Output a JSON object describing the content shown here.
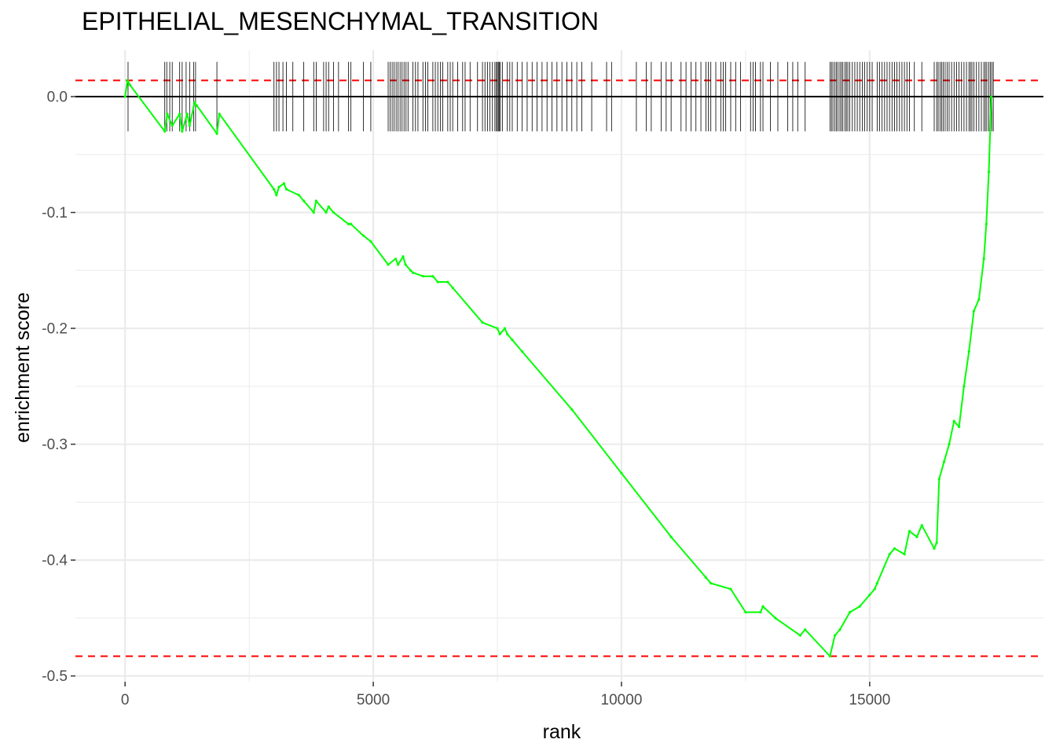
{
  "chart_data": {
    "type": "line",
    "title": "EPITHELIAL_MESENCHYMAL_TRANSITION",
    "xlabel": "rank",
    "ylabel": "enrichment score",
    "xlim": [
      -1000,
      18500
    ],
    "ylim": [
      -0.505,
      0.04
    ],
    "x_ticks": [
      0,
      5000,
      10000,
      15000
    ],
    "x_tick_labels": [
      "0",
      "5000",
      "10000",
      "15000"
    ],
    "y_ticks": [
      0.0,
      -0.1,
      -0.2,
      -0.3,
      -0.4,
      -0.5
    ],
    "y_tick_labels": [
      "0.0",
      "-0.1",
      "-0.2",
      "-0.3",
      "-0.4",
      "-0.5"
    ],
    "grid": true,
    "colors": {
      "curve": "#00ff00",
      "reference_lines": "#ff0000",
      "zero_line": "#000000",
      "gene_ticks": "#000000",
      "grid": "#ebebeb"
    },
    "reference_lines": {
      "upper": 0.014,
      "lower": -0.483,
      "zero": 0.0
    },
    "series": [
      {
        "x": [
          0,
          50,
          100,
          800,
          850,
          950,
          1100,
          1150,
          1250,
          1300,
          1400,
          1450,
          1850,
          1900,
          3000,
          3050,
          3100,
          3200,
          3250,
          3500,
          3600,
          3800,
          3850,
          4050,
          4100,
          4200,
          4500,
          4550,
          4800,
          4950,
          5300,
          5450,
          5500,
          5600,
          5650,
          5750,
          5800,
          6000,
          6200,
          6300,
          6500,
          6600,
          7200,
          7500,
          7550,
          7650,
          7700,
          7800,
          8000,
          9000,
          10000,
          11000,
          11700,
          11800,
          12200,
          12500,
          12800,
          12850,
          13100,
          13600,
          13700,
          14200,
          14300,
          14400,
          14600,
          14800,
          15000,
          15100,
          15150,
          15400,
          15500,
          15700,
          15800,
          15950,
          16050,
          16300,
          16350,
          16400,
          16500,
          16600,
          16700,
          16800,
          16900,
          17000,
          17100,
          17200,
          17300,
          17350,
          17400,
          17450
        ],
        "y": [
          0.0,
          0.014,
          0.01,
          -0.03,
          -0.015,
          -0.025,
          -0.015,
          -0.03,
          -0.015,
          -0.025,
          -0.005,
          -0.008,
          -0.032,
          -0.015,
          -0.08,
          -0.085,
          -0.078,
          -0.075,
          -0.08,
          -0.085,
          -0.09,
          -0.1,
          -0.09,
          -0.1,
          -0.095,
          -0.1,
          -0.11,
          -0.11,
          -0.12,
          -0.125,
          -0.145,
          -0.14,
          -0.145,
          -0.138,
          -0.145,
          -0.15,
          -0.152,
          -0.155,
          -0.155,
          -0.16,
          -0.16,
          -0.165,
          -0.195,
          -0.2,
          -0.205,
          -0.2,
          -0.205,
          -0.21,
          -0.22,
          -0.27,
          -0.325,
          -0.38,
          -0.415,
          -0.42,
          -0.425,
          -0.445,
          -0.445,
          -0.44,
          -0.45,
          -0.465,
          -0.46,
          -0.483,
          -0.465,
          -0.46,
          -0.445,
          -0.44,
          -0.43,
          -0.425,
          -0.42,
          -0.395,
          -0.39,
          -0.395,
          -0.375,
          -0.38,
          -0.37,
          -0.39,
          -0.385,
          -0.33,
          -0.315,
          -0.3,
          -0.28,
          -0.285,
          -0.25,
          -0.22,
          -0.185,
          -0.175,
          -0.14,
          -0.11,
          -0.065,
          0.0
        ]
      }
    ],
    "gene_ranks": [
      60,
      800,
      840,
      900,
      950,
      1100,
      1150,
      1230,
      1300,
      1380,
      1420,
      1850,
      3000,
      3050,
      3100,
      3180,
      3250,
      3380,
      3600,
      3800,
      3850,
      4000,
      4050,
      4100,
      4200,
      4300,
      4500,
      4550,
      4800,
      4950,
      5300,
      5340,
      5380,
      5420,
      5460,
      5500,
      5540,
      5580,
      5620,
      5660,
      5700,
      5800,
      5850,
      5900,
      6000,
      6050,
      6100,
      6200,
      6250,
      6300,
      6350,
      6400,
      6500,
      6550,
      6600,
      6700,
      6800,
      6850,
      6950,
      7100,
      7200,
      7250,
      7300,
      7350,
      7400,
      7450,
      7480,
      7500,
      7520,
      7540,
      7560,
      7600,
      7700,
      7750,
      7800,
      7900,
      8000,
      8100,
      8200,
      8300,
      8400,
      8500,
      8600,
      8700,
      8800,
      8900,
      9000,
      9100,
      9200,
      9400,
      9700,
      9800,
      10300,
      10500,
      10600,
      10800,
      10900,
      11000,
      11200,
      11300,
      11400,
      11500,
      11600,
      11700,
      11750,
      11800,
      11900,
      12000,
      12050,
      12100,
      12200,
      12300,
      12400,
      12600,
      12650,
      12700,
      12800,
      12850,
      13000,
      13150,
      13350,
      13450,
      13550,
      13700,
      14200,
      14230,
      14260,
      14300,
      14330,
      14360,
      14400,
      14430,
      14460,
      14500,
      14530,
      14560,
      14600,
      14650,
      14700,
      14750,
      14800,
      14850,
      14900,
      14950,
      15000,
      15050,
      15150,
      15200,
      15250,
      15300,
      15350,
      15400,
      15450,
      15500,
      15550,
      15600,
      15650,
      15700,
      15750,
      15800,
      15900,
      16050,
      16300,
      16350,
      16380,
      16420,
      16450,
      16480,
      16520,
      16560,
      16600,
      16650,
      16700,
      16750,
      16800,
      16850,
      16900,
      16950,
      17000,
      17030,
      17060,
      17100,
      17150,
      17200,
      17250,
      17300,
      17330,
      17360,
      17400,
      17430,
      17460,
      17490
    ]
  }
}
